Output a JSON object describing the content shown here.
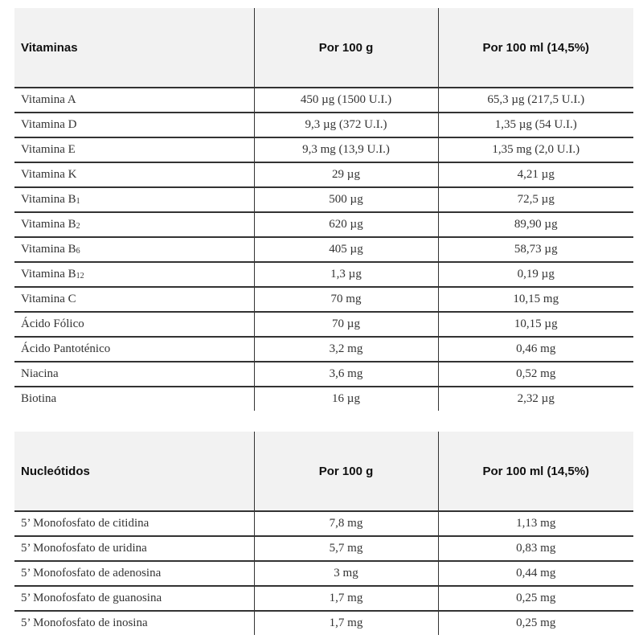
{
  "vitaminas": {
    "headers": [
      "Vitaminas",
      "Por 100 g",
      "Por 100 ml (14,5%)"
    ],
    "rows": [
      {
        "name": "Vitamina A",
        "sub": "",
        "g": "450 µg (1500 U.I.)",
        "ml": "65,3 µg (217,5 U.I.)"
      },
      {
        "name": "Vitamina D",
        "sub": "",
        "g": "9,3 µg (372 U.I.)",
        "ml": "1,35 µg (54 U.I.)"
      },
      {
        "name": "Vitamina E",
        "sub": "",
        "g": "9,3 mg (13,9 U.I.)",
        "ml": "1,35 mg (2,0 U.I.)"
      },
      {
        "name": "Vitamina K",
        "sub": "",
        "g": "29 µg",
        "ml": "4,21 µg"
      },
      {
        "name": "Vitamina B",
        "sub": "1",
        "g": "500 µg",
        "ml": "72,5 µg"
      },
      {
        "name": "Vitamina B",
        "sub": "2",
        "g": "620 µg",
        "ml": "89,90 µg"
      },
      {
        "name": "Vitamina B",
        "sub": "6",
        "g": "405 µg",
        "ml": "58,73 µg"
      },
      {
        "name": "Vitamina B",
        "sub": "12",
        "g": "1,3 µg",
        "ml": "0,19 µg"
      },
      {
        "name": "Vitamina C",
        "sub": "",
        "g": "70 mg",
        "ml": "10,15 mg"
      },
      {
        "name": "Ácido Fólico",
        "sub": "",
        "g": "70 µg",
        "ml": "10,15 µg"
      },
      {
        "name": "Ácido Pantoténico",
        "sub": "",
        "g": "3,2 mg",
        "ml": "0,46 mg"
      },
      {
        "name": "Niacina",
        "sub": "",
        "g": "3,6 mg",
        "ml": "0,52 mg"
      },
      {
        "name": "Biotina",
        "sub": "",
        "g": "16 µg",
        "ml": "2,32 µg"
      }
    ]
  },
  "nucleotidos": {
    "headers": [
      "Nucleótidos",
      "Por 100 g",
      "Por 100 ml (14,5%)"
    ],
    "rows": [
      {
        "name": "5’ Monofosfato de citidina",
        "sub": "",
        "g": "7,8 mg",
        "ml": "1,13 mg"
      },
      {
        "name": "5’ Monofosfato de uridina",
        "sub": "",
        "g": "5,7 mg",
        "ml": "0,83 mg"
      },
      {
        "name": "5’ Monofosfato de adenosina",
        "sub": "",
        "g": "3 mg",
        "ml": "0,44 mg"
      },
      {
        "name": "5’ Monofosfato de guanosina",
        "sub": "",
        "g": "1,7 mg",
        "ml": "0,25 mg"
      },
      {
        "name": "5’ Monofosfato de inosina",
        "sub": "",
        "g": "1,7 mg",
        "ml": "0,25 mg"
      }
    ]
  }
}
